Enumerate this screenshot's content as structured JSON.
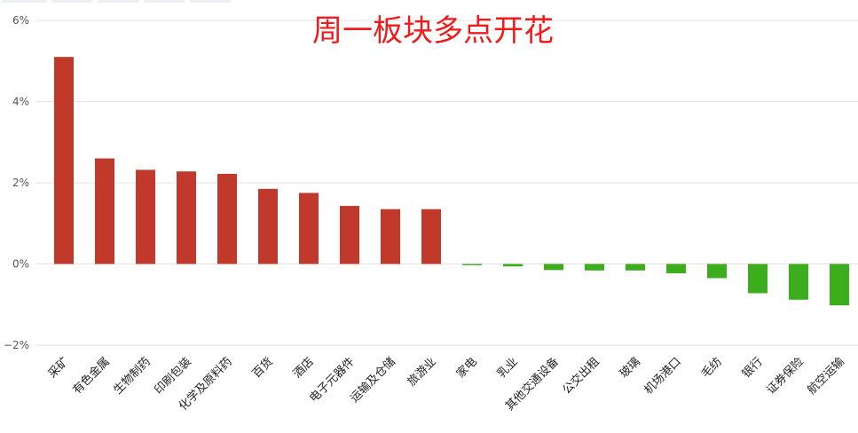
{
  "chart_data": {
    "type": "bar",
    "title": "周一板块多点开花",
    "xlabel": "",
    "ylabel": "",
    "ylim": [
      -2,
      6
    ],
    "yticks": [
      -2,
      0,
      2,
      4,
      6
    ],
    "ytick_suffix": "%",
    "grid": true,
    "categories": [
      "采矿",
      "有色金属",
      "生物制药",
      "印刷包装",
      "化学及原料药",
      "百货",
      "酒店",
      "电子元器件",
      "运输及仓储",
      "旅游业",
      "家电",
      "乳业",
      "其他交通设备",
      "公交出租",
      "玻璃",
      "机场港口",
      "毛纺",
      "银行",
      "证券保险",
      "航空运输"
    ],
    "values": [
      5.1,
      2.6,
      2.32,
      2.28,
      2.22,
      1.85,
      1.75,
      1.43,
      1.35,
      1.35,
      -0.03,
      -0.06,
      -0.15,
      -0.16,
      -0.16,
      -0.23,
      -0.35,
      -0.72,
      -0.88,
      -1.02
    ],
    "colors": {
      "positive": "#c0392b",
      "negative": "#3cae1e"
    }
  }
}
